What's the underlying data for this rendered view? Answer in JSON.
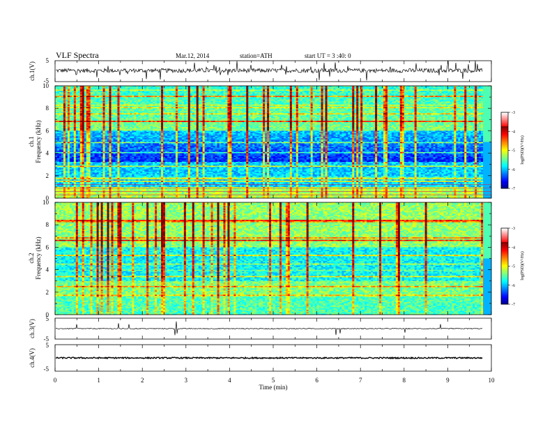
{
  "header": {
    "title": "VLF  Spectra",
    "date": "Mar.12, 2014",
    "station": "station=ATH",
    "start": "start  UT =   3 :40: 0"
  },
  "chart_data": [
    {
      "type": "line",
      "panel": "ch1-waveform",
      "ylabel": "ch.1(V)",
      "ylim": [
        -5,
        5
      ],
      "yticks": [
        "5",
        "-5"
      ],
      "x_range_min": [
        0,
        9.8
      ],
      "baseline_v": 0.3,
      "noise_amplitude_v": 1.0,
      "color": "#000000"
    },
    {
      "type": "heatmap",
      "panel": "ch1-spectrogram",
      "ylabel": [
        "ch.1",
        "Frequency  (kHz)"
      ],
      "ylim": [
        0,
        10
      ],
      "yticks": [
        "0",
        "2",
        "4",
        "6",
        "8",
        "10"
      ],
      "colorbar": {
        "label": "log(PSD)(V²/Hz)",
        "range": [
          -7,
          -3
        ],
        "ticks": [
          "-3",
          "-4",
          "-5",
          "-6",
          "-7"
        ]
      }
    },
    {
      "type": "heatmap",
      "panel": "ch2-spectrogram",
      "ylabel": [
        "ch.2",
        "Frequency  (kHz)"
      ],
      "ylim": [
        0,
        10
      ],
      "yticks": [
        "0",
        "2",
        "4",
        "6",
        "8",
        "10"
      ],
      "colorbar": {
        "label": "log(PSD)(V²/Hz)",
        "range": [
          -7,
          -3
        ],
        "ticks": [
          "-3",
          "-4",
          "-5",
          "-6",
          "-7"
        ]
      }
    },
    {
      "type": "line",
      "panel": "ch3-waveform",
      "ylabel": "ch.3(V)",
      "ylim": [
        -5,
        5
      ],
      "yticks": [
        "5",
        "-5"
      ],
      "x_range_min": [
        0,
        9.8
      ],
      "baseline_v": 0.0,
      "noise_amplitude_v": 0.2,
      "color": "#000000"
    },
    {
      "type": "line",
      "panel": "ch4-waveform",
      "ylabel": "ch.4(V)",
      "ylim": [
        -5,
        5
      ],
      "yticks": [
        "5",
        "-5"
      ],
      "x_range_min": [
        0,
        9.8
      ],
      "baseline_v": 0.0,
      "noise_amplitude_v": 0.25,
      "color": "#000000"
    }
  ],
  "xaxis": {
    "label": "Time  (min)",
    "range": [
      0,
      10
    ],
    "ticks": [
      "0",
      "1",
      "2",
      "3",
      "4",
      "5",
      "6",
      "7",
      "8",
      "9",
      "10"
    ]
  }
}
